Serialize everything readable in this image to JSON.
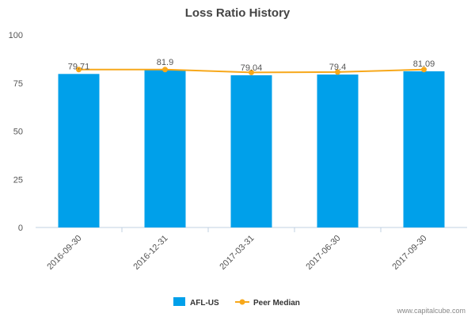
{
  "colors": {
    "bar": "#00a0ea",
    "line": "#f7a81b",
    "axis": "#c0d0e0",
    "text": "#555555",
    "title": "#444444"
  },
  "chart_data": {
    "type": "bar",
    "title": "Loss Ratio History",
    "xlabel": "",
    "ylabel": "",
    "ylim": [
      0,
      100
    ],
    "yticks": [
      0,
      25,
      50,
      75,
      100
    ],
    "grid": false,
    "legend_position": "bottom-center",
    "categories": [
      "2016-09-30",
      "2016-12-31",
      "2017-03-31",
      "2017-06-30",
      "2017-09-30"
    ],
    "series": [
      {
        "name": "AFL-US",
        "type": "bar",
        "values": [
          79.71,
          81.9,
          79.04,
          79.4,
          81.09
        ],
        "labels": [
          "79.71",
          "81.9",
          "79.04",
          "79.4",
          "81.09"
        ]
      },
      {
        "name": "Peer Median",
        "type": "line",
        "values": [
          82.0,
          82.0,
          80.5,
          80.7,
          82.0
        ]
      }
    ]
  },
  "credit": "www.capitalcube.com"
}
